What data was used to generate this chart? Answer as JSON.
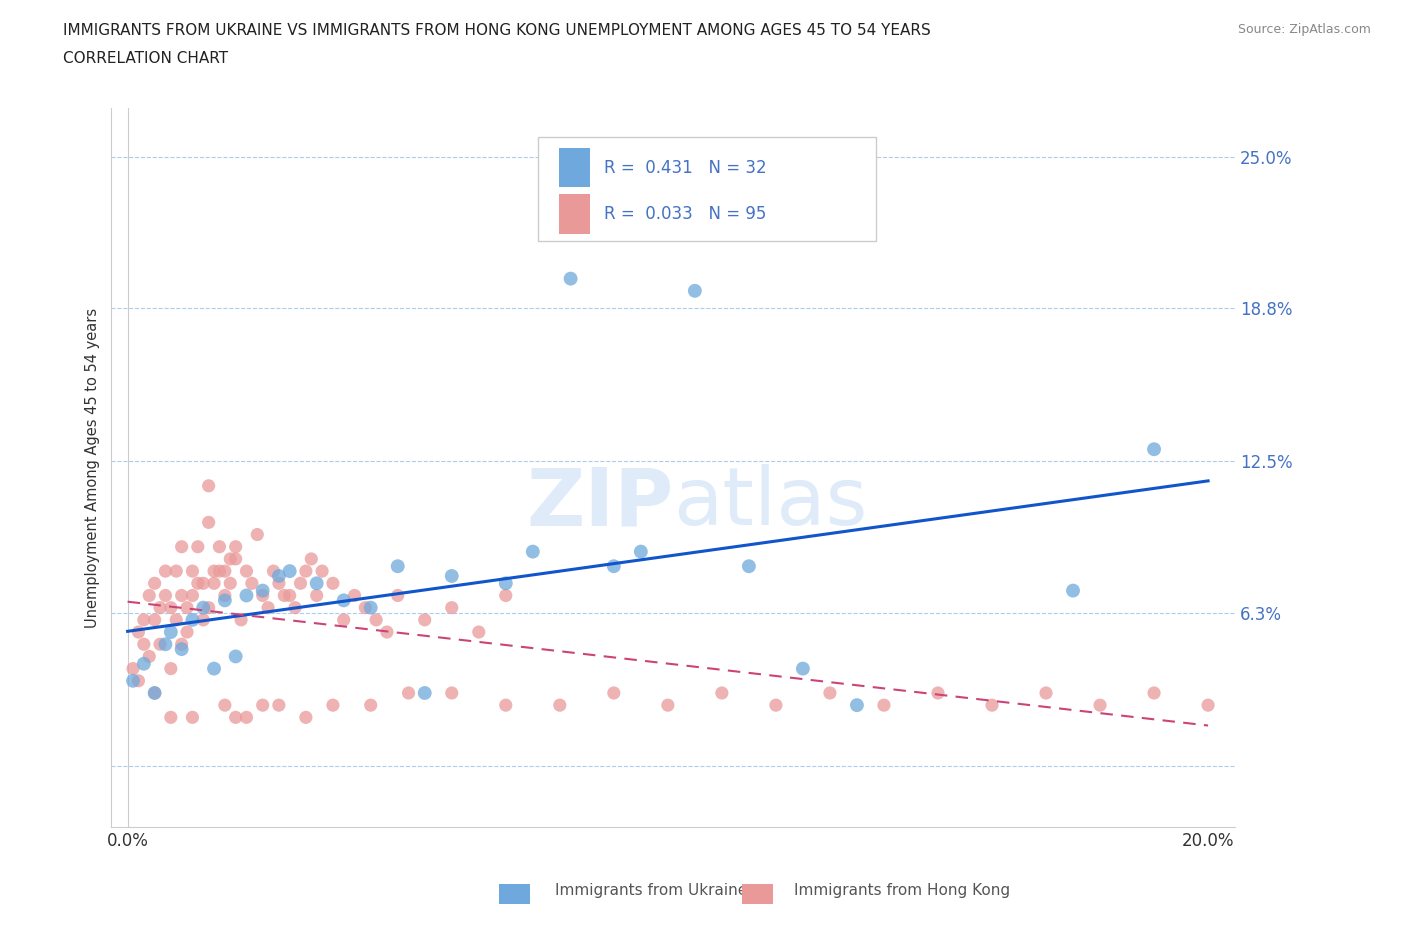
{
  "title_line1": "IMMIGRANTS FROM UKRAINE VS IMMIGRANTS FROM HONG KONG UNEMPLOYMENT AMONG AGES 45 TO 54 YEARS",
  "title_line2": "CORRELATION CHART",
  "source": "Source: ZipAtlas.com",
  "ylabel": "Unemployment Among Ages 45 to 54 years",
  "xlim": [
    -0.003,
    0.205
  ],
  "ylim": [
    -0.025,
    0.27
  ],
  "ytick_vals": [
    0.0,
    0.063,
    0.125,
    0.188,
    0.25
  ],
  "ytick_labels": [
    "",
    "6.3%",
    "12.5%",
    "18.8%",
    "25.0%"
  ],
  "xtick_vals": [
    0.0,
    0.05,
    0.1,
    0.15,
    0.2
  ],
  "xtick_labels": [
    "0.0%",
    "",
    "",
    "",
    "20.0%"
  ],
  "ukraine_color": "#6fa8dc",
  "hk_color": "#ea9999",
  "ukraine_line_color": "#1155cc",
  "hk_line_color": "#cc4477",
  "ukraine_R": 0.431,
  "ukraine_N": 32,
  "hk_R": 0.033,
  "hk_N": 95,
  "background_color": "#ffffff",
  "grid_color": "#aaccee",
  "uk_x": [
    0.001,
    0.003,
    0.005,
    0.007,
    0.008,
    0.01,
    0.012,
    0.014,
    0.016,
    0.018,
    0.02,
    0.022,
    0.025,
    0.028,
    0.03,
    0.035,
    0.04,
    0.045,
    0.05,
    0.055,
    0.06,
    0.07,
    0.075,
    0.082,
    0.09,
    0.095,
    0.105,
    0.115,
    0.125,
    0.135,
    0.175,
    0.19
  ],
  "uk_y": [
    0.035,
    0.042,
    0.03,
    0.05,
    0.055,
    0.048,
    0.06,
    0.065,
    0.04,
    0.068,
    0.045,
    0.07,
    0.072,
    0.078,
    0.08,
    0.075,
    0.068,
    0.065,
    0.082,
    0.03,
    0.078,
    0.075,
    0.088,
    0.2,
    0.082,
    0.088,
    0.195,
    0.082,
    0.04,
    0.025,
    0.072,
    0.13
  ],
  "hk_x": [
    0.001,
    0.002,
    0.002,
    0.003,
    0.003,
    0.004,
    0.004,
    0.005,
    0.005,
    0.006,
    0.006,
    0.007,
    0.007,
    0.008,
    0.008,
    0.009,
    0.009,
    0.01,
    0.01,
    0.011,
    0.011,
    0.012,
    0.012,
    0.013,
    0.013,
    0.014,
    0.014,
    0.015,
    0.015,
    0.016,
    0.016,
    0.017,
    0.017,
    0.018,
    0.018,
    0.019,
    0.019,
    0.02,
    0.02,
    0.021,
    0.022,
    0.023,
    0.024,
    0.025,
    0.026,
    0.027,
    0.028,
    0.029,
    0.03,
    0.031,
    0.032,
    0.033,
    0.034,
    0.035,
    0.036,
    0.038,
    0.04,
    0.042,
    0.044,
    0.046,
    0.048,
    0.05,
    0.055,
    0.06,
    0.065,
    0.07,
    0.02,
    0.025,
    0.015,
    0.01,
    0.005,
    0.008,
    0.012,
    0.018,
    0.022,
    0.028,
    0.033,
    0.038,
    0.045,
    0.052,
    0.06,
    0.07,
    0.08,
    0.09,
    0.1,
    0.11,
    0.12,
    0.13,
    0.14,
    0.15,
    0.16,
    0.17,
    0.18,
    0.19,
    0.2
  ],
  "hk_y": [
    0.04,
    0.035,
    0.055,
    0.05,
    0.06,
    0.045,
    0.07,
    0.06,
    0.075,
    0.05,
    0.065,
    0.07,
    0.08,
    0.04,
    0.065,
    0.06,
    0.08,
    0.05,
    0.07,
    0.065,
    0.055,
    0.07,
    0.08,
    0.075,
    0.09,
    0.06,
    0.075,
    0.065,
    0.1,
    0.08,
    0.075,
    0.08,
    0.09,
    0.07,
    0.08,
    0.075,
    0.085,
    0.085,
    0.09,
    0.06,
    0.08,
    0.075,
    0.095,
    0.07,
    0.065,
    0.08,
    0.075,
    0.07,
    0.07,
    0.065,
    0.075,
    0.08,
    0.085,
    0.07,
    0.08,
    0.075,
    0.06,
    0.07,
    0.065,
    0.06,
    0.055,
    0.07,
    0.06,
    0.065,
    0.055,
    0.07,
    0.02,
    0.025,
    0.115,
    0.09,
    0.03,
    0.02,
    0.02,
    0.025,
    0.02,
    0.025,
    0.02,
    0.025,
    0.025,
    0.03,
    0.03,
    0.025,
    0.025,
    0.03,
    0.025,
    0.03,
    0.025,
    0.03,
    0.025,
    0.03,
    0.025,
    0.03,
    0.025,
    0.03,
    0.025
  ]
}
